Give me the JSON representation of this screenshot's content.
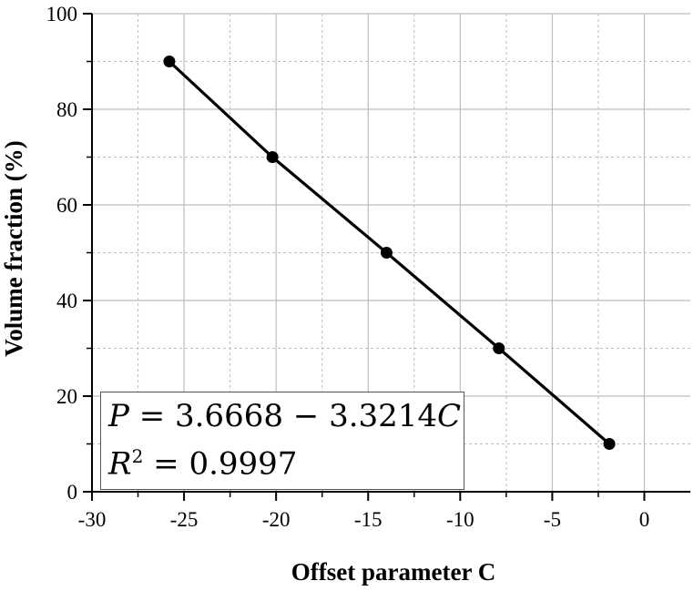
{
  "chart_data": {
    "type": "line",
    "x": [
      -25.8,
      -20.2,
      -14,
      -7.9,
      -1.9
    ],
    "series": [
      {
        "values": [
          90,
          70,
          50,
          30,
          10
        ]
      }
    ],
    "xlabel": "Offset parameter C",
    "ylabel": "Volume fraction (%)",
    "xlim": [
      -30,
      2.5
    ],
    "ylim": [
      0,
      100
    ],
    "xticks": [
      "-30",
      "-25",
      "-20",
      "-15",
      "-10",
      "-5",
      "0"
    ],
    "yticks": [
      "0",
      "20",
      "40",
      "60",
      "80",
      "100"
    ],
    "grid": true,
    "annotation": {
      "line1_lhs": "P",
      "line1_rhs": " = 3.6668 − 3.3214",
      "line1_var": "C",
      "line2_lhs": "R",
      "line2_sup": "2",
      "line2_rhs": " = 0.9997"
    },
    "colors": {
      "line": "#000000",
      "marker": "#000000",
      "grid": "#bdbdbd"
    }
  }
}
